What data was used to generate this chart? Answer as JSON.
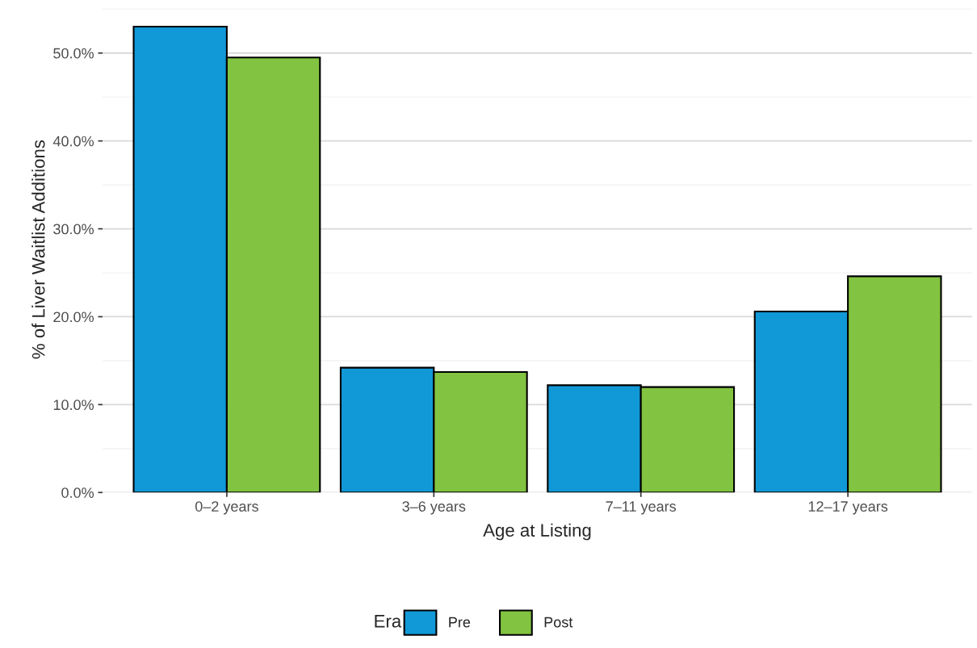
{
  "chart_data": {
    "type": "bar",
    "xlabel": "Age at Listing",
    "ylabel": "% of Liver Waitlist Additions",
    "legend_title": "Era",
    "categories": [
      "0–2 years",
      "3–6 years",
      "7–11 years",
      "12–17 years"
    ],
    "series": [
      {
        "name": "Pre",
        "color": "#1198d6",
        "values": [
          53.0,
          14.2,
          12.2,
          20.6
        ]
      },
      {
        "name": "Post",
        "color": "#82c341",
        "values": [
          49.5,
          13.7,
          12.0,
          24.6
        ]
      }
    ],
    "ylim": [
      0,
      55.3
    ],
    "yticks": [
      {
        "value": 0,
        "label": "0.0%"
      },
      {
        "value": 10,
        "label": "10.0%"
      },
      {
        "value": 20,
        "label": "20.0%"
      },
      {
        "value": 30,
        "label": "30.0%"
      },
      {
        "value": 40,
        "label": "40.0%"
      },
      {
        "value": 50,
        "label": "50.0%"
      }
    ],
    "grid": "y",
    "legend": "bottom"
  }
}
